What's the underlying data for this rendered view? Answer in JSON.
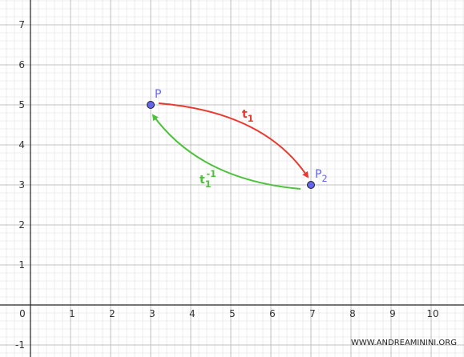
{
  "chart_data": {
    "type": "scatter",
    "xlim": [
      -0.76,
      10.82
    ],
    "ylim": [
      -1.3,
      7.62
    ],
    "xticks": [
      0,
      1,
      2,
      3,
      4,
      5,
      6,
      7,
      8,
      9,
      10
    ],
    "yticks": [
      -1,
      1,
      2,
      3,
      4,
      5,
      6,
      7
    ],
    "grid": true,
    "minor_grid": 5,
    "series": [
      {
        "color": "#6464e8",
        "x": [
          3,
          7
        ],
        "values": [
          5,
          3
        ]
      }
    ],
    "point_labels": [
      {
        "text": "P"
      },
      {
        "text": "P",
        "sub": "2"
      }
    ],
    "annotations": [
      {
        "text": "t",
        "sub": "1",
        "color": "#e8392f"
      },
      {
        "text": "t",
        "sub": "1",
        "sup": "-1",
        "color": "#4cc23a"
      }
    ],
    "watermark": "WWW.ANDREAMININI.ORG"
  }
}
